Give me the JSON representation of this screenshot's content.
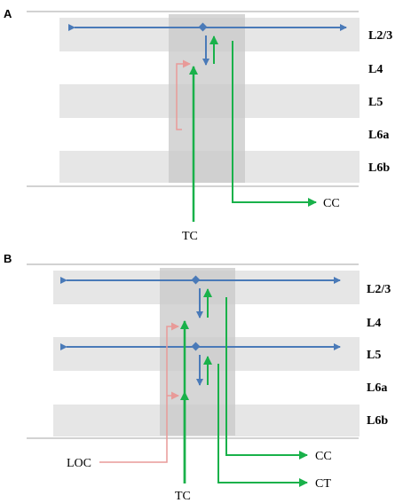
{
  "colors": {
    "layer_band": "#e6e6e6",
    "column": "#c8c8c8",
    "boundary_line": "#a6a6a6",
    "blue_arrow": "#4a7ab8",
    "green_arrow": "#19b14a",
    "pink_arrow": "#e89a98"
  },
  "panels": [
    {
      "id": "A",
      "label": "A",
      "layers": [
        "L2/3",
        "L4",
        "L5",
        "L6a",
        "L6b"
      ],
      "outputs": [
        "CC"
      ],
      "inputs": [
        "TC"
      ]
    },
    {
      "id": "B",
      "label": "B",
      "layers": [
        "L2/3",
        "L4",
        "L5",
        "L6a",
        "L6b"
      ],
      "outputs": [
        "CC",
        "CT"
      ],
      "inputs": [
        "LOC",
        "TC"
      ]
    }
  ]
}
